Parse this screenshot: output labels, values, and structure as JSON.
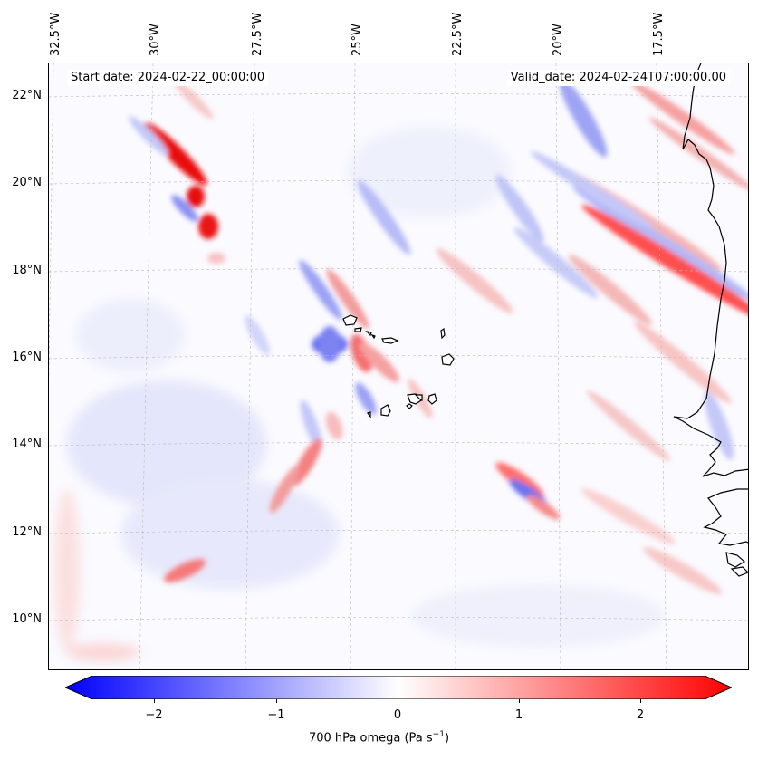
{
  "map": {
    "start_date": "Start date: 2024-02-22_00:00:00",
    "valid_date": "Valid_date: 2024-02-24T07:00:00.00",
    "longitudes": [
      "32.5°W",
      "30°W",
      "27.5°W",
      "25°W",
      "22.5°W",
      "20°W",
      "17.5°W"
    ],
    "latitudes": [
      "22°N",
      "20°N",
      "18°N",
      "16°N",
      "14°N",
      "12°N",
      "10°N"
    ],
    "colormap": {
      "negative": "#0000ff",
      "zero": "#ffffff",
      "positive": "#ff0000"
    }
  },
  "colorbar": {
    "ticks": [
      "−2",
      "−1",
      "0",
      "1",
      "2"
    ],
    "label_text": "700 hPa omega (Pa s",
    "label_sup": "−1",
    "label_end": ")",
    "range": [
      -2.6,
      2.6
    ]
  }
}
